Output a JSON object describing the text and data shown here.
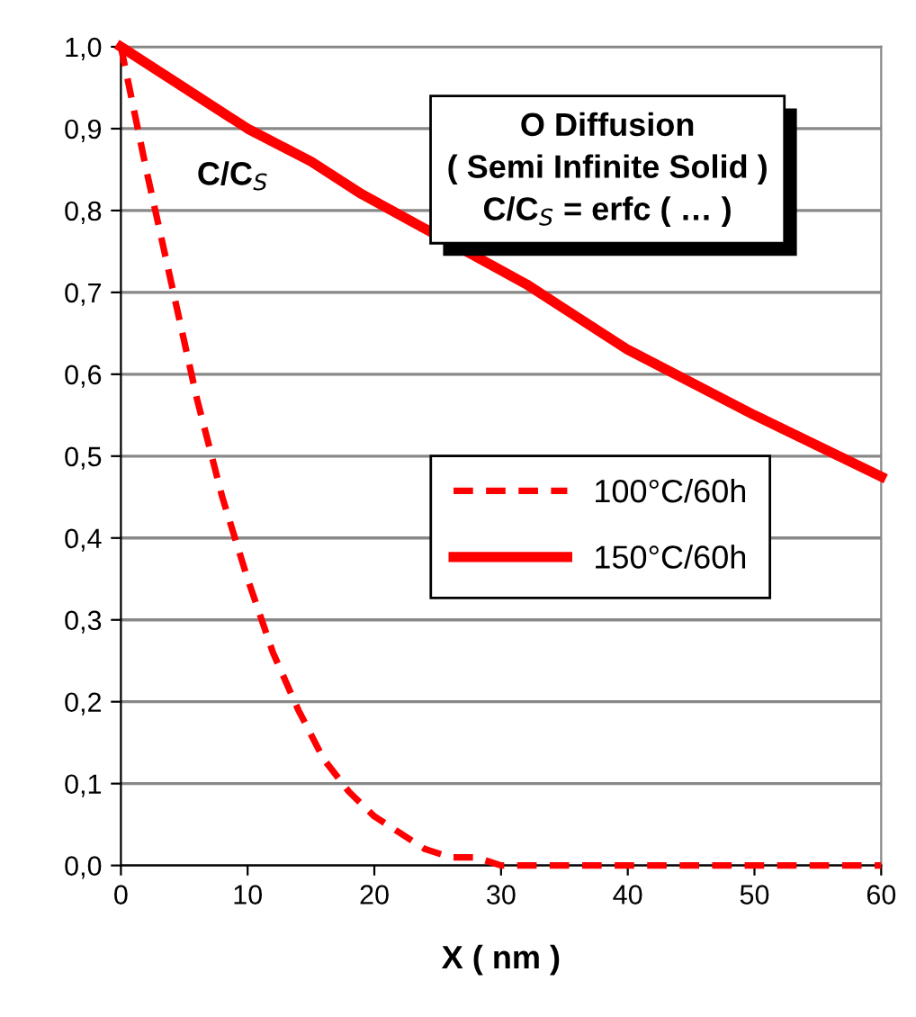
{
  "chart_data": {
    "type": "line",
    "xlabel": "X ( nm )",
    "ylabel": "C/C$_{S}$",
    "annotations": [
      "O Diffusion\n( Semi Infinite Solid )\nC/C$_{S}$ = erfc ( … )"
    ],
    "series": [
      {
        "name": "100°C/60h",
        "color": "#ff0000",
        "line_style": "dashed",
        "x": [
          0,
          2,
          4,
          6,
          8,
          10,
          12,
          14,
          16,
          18,
          20,
          22,
          24,
          26,
          28,
          30,
          35,
          40,
          50,
          60
        ],
        "values": [
          1.0,
          0.85,
          0.71,
          0.57,
          0.45,
          0.35,
          0.26,
          0.19,
          0.13,
          0.09,
          0.06,
          0.04,
          0.02,
          0.01,
          0.01,
          0.0,
          0.0,
          0.0,
          0.0,
          0.0
        ]
      },
      {
        "name": "150°C/60h",
        "color": "#ff0000",
        "line_style": "solid",
        "x": [
          0,
          5,
          10,
          15,
          19,
          32,
          35,
          40,
          45,
          50,
          60
        ],
        "values": [
          1.0,
          0.95,
          0.9,
          0.86,
          0.82,
          0.71,
          0.68,
          0.63,
          0.59,
          0.55,
          0.475
        ]
      }
    ],
    "xlim": [
      0,
      60
    ],
    "xticks": [
      0,
      10,
      20,
      30,
      40,
      50,
      60
    ],
    "ylim": [
      0,
      1.0
    ],
    "yticks": [
      {
        "value": 0,
        "label": "0,0"
      },
      {
        "value": 0.1,
        "label": "0,1"
      },
      {
        "value": 0.2,
        "label": "0,2"
      },
      {
        "value": 0.3,
        "label": "0,3"
      },
      {
        "value": 0.4,
        "label": "0,4"
      },
      {
        "value": 0.5,
        "label": "0,5"
      },
      {
        "value": 0.6,
        "label": "0,6"
      },
      {
        "value": 0.7,
        "label": "0,7"
      },
      {
        "value": 0.8,
        "label": "0,8"
      },
      {
        "value": 0.9,
        "label": "0,9"
      },
      {
        "value": 1.0,
        "label": "1,0"
      }
    ],
    "grid": "y",
    "legend": "right",
    "marker": "none"
  }
}
